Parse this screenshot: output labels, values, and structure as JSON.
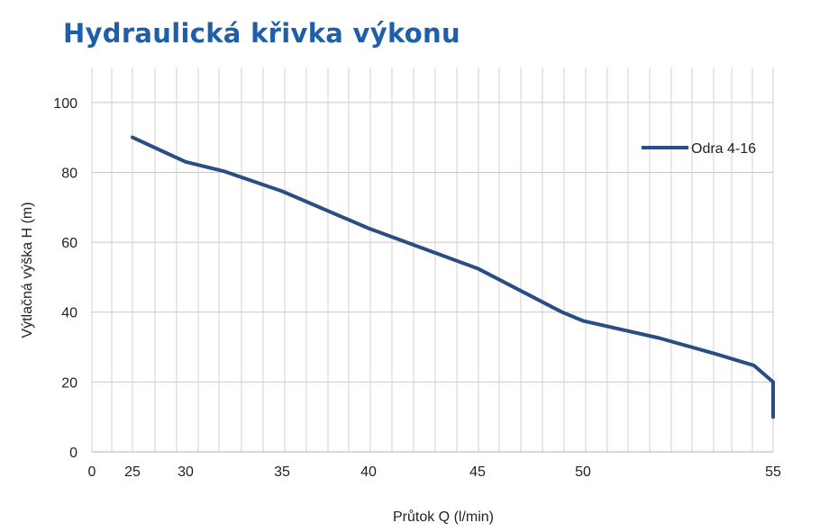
{
  "title": "Hydraulická křivka výkonu",
  "chart_data": {
    "type": "line",
    "xlabel": "Průtok Q (l/min)",
    "ylabel": "Výtlačná výška H (m)",
    "xlim": [
      0,
      55
    ],
    "ylim": [
      0,
      110
    ],
    "x_tick_labels": [
      "0",
      "25",
      "30",
      "35",
      "40",
      "45",
      "50",
      "55"
    ],
    "y_tick_labels": [
      "0",
      "20",
      "40",
      "60",
      "80",
      "100"
    ],
    "y_ticks": [
      0,
      20,
      40,
      60,
      80,
      100
    ],
    "grid": true,
    "legend_position": "top-right",
    "series": [
      {
        "name": "Odra 4-16",
        "color": "#2a4d83",
        "points": [
          [
            25,
            90
          ],
          [
            27,
            87.2
          ],
          [
            30,
            83
          ],
          [
            32,
            80.3
          ],
          [
            35,
            74.6
          ],
          [
            40,
            64
          ],
          [
            45,
            52.5
          ],
          [
            49,
            40
          ],
          [
            50,
            37.5
          ],
          [
            52,
            32.6
          ],
          [
            53.5,
            28
          ],
          [
            54.5,
            24.7
          ],
          [
            55.5,
            20
          ],
          [
            56.5,
            16
          ],
          [
            57.2,
            10
          ]
        ]
      }
    ]
  }
}
